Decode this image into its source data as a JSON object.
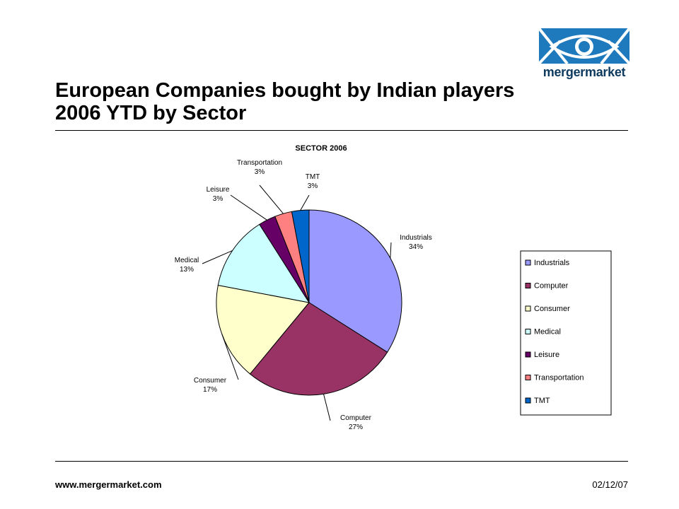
{
  "header": {
    "title_line1": "European Companies bought by Indian players",
    "title_line2": "2006 YTD by Sector",
    "logo_text": "mergermarket"
  },
  "footer": {
    "url": "www.mergermarket.com",
    "date": "02/12/07"
  },
  "chart_data": {
    "type": "pie",
    "title": "SECTOR 2006",
    "slices": [
      {
        "label": "Industrials",
        "value": 34,
        "display": "34%",
        "color": "#9999ff"
      },
      {
        "label": "Computer",
        "value": 27,
        "display": "27%",
        "color": "#993366"
      },
      {
        "label": "Consumer",
        "value": 17,
        "display": "17%",
        "color": "#ffffcc"
      },
      {
        "label": "Medical",
        "value": 13,
        "display": "13%",
        "color": "#ccffff"
      },
      {
        "label": "Leisure",
        "value": 3,
        "display": "3%",
        "color": "#660066"
      },
      {
        "label": "Transportation",
        "value": 3,
        "display": "3%",
        "color": "#ff8080"
      },
      {
        "label": "TMT",
        "value": 3,
        "display": "3%",
        "color": "#0066cc"
      }
    ],
    "legend": {
      "position": "right"
    }
  }
}
